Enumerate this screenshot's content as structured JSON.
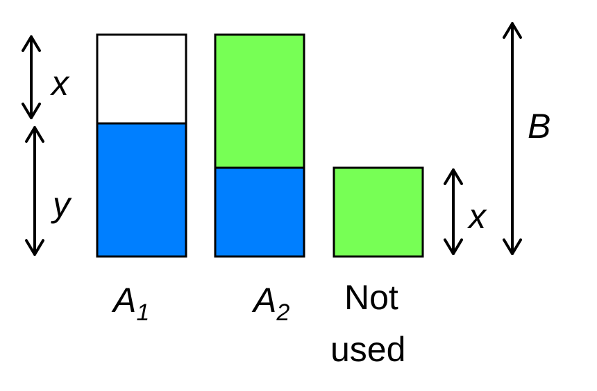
{
  "colors": {
    "blue": "#007FFF",
    "green": "#77FF55",
    "white": "#FFFFFF",
    "stroke": "#000000"
  },
  "labels": {
    "x_left": "x",
    "y_left": "y",
    "B_right": "B",
    "x_right": "x",
    "A1": {
      "base": "A",
      "sub": "1"
    },
    "A2": {
      "base": "A",
      "sub": "2"
    },
    "not_used_line1": "Not",
    "not_used_line2": "used"
  }
}
